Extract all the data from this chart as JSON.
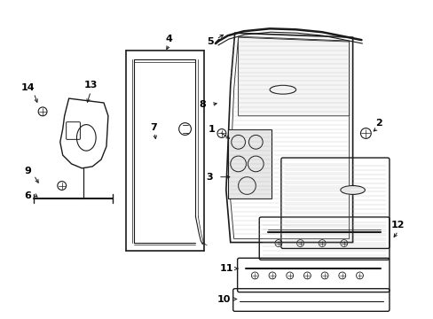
{
  "bg_color": "#ffffff",
  "line_color": "#1a1a1a",
  "gray_color": "#888888",
  "light_gray": "#cccccc"
}
